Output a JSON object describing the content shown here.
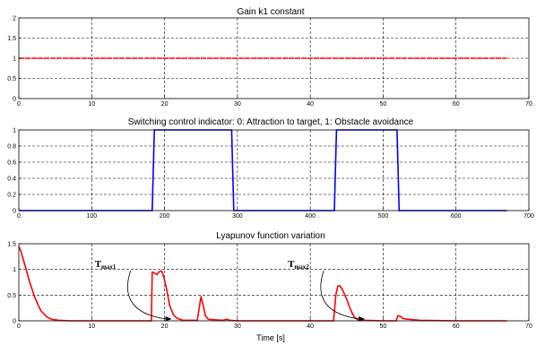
{
  "chart_data": [
    {
      "type": "line",
      "title": "Gain k1 constant",
      "xlim": [
        0,
        70
      ],
      "ylim": [
        0,
        2
      ],
      "xticks": [
        0,
        10,
        20,
        30,
        40,
        50,
        60,
        70
      ],
      "yticks": [
        0,
        0.5,
        1,
        1.5,
        2
      ],
      "grid": true,
      "series": [
        {
          "color": "#ff0000",
          "style": "dashed",
          "x": [
            0,
            67
          ],
          "y": [
            1,
            1
          ]
        }
      ]
    },
    {
      "type": "line",
      "title": "Switching control indicator: 0: Attraction to target, 1: Obstacle avoidance",
      "xlim": [
        0,
        700
      ],
      "ylim": [
        0,
        1
      ],
      "xticks": [
        0,
        100,
        200,
        300,
        400,
        500,
        600,
        700
      ],
      "yticks": [
        0,
        0.2,
        0.4,
        0.6,
        0.8,
        1
      ],
      "grid": true,
      "series": [
        {
          "color": "#0000ff",
          "x": [
            0,
            183,
            186,
            292,
            295,
            433,
            436,
            519,
            522,
            670
          ],
          "y": [
            0,
            0,
            1,
            1,
            0,
            0,
            1,
            1,
            0,
            0
          ]
        }
      ]
    },
    {
      "type": "line",
      "title": "Lyapunov function variation",
      "xlabel": "Time [s]",
      "xlim": [
        0,
        70
      ],
      "ylim": [
        0,
        1.5
      ],
      "xticks": [
        0,
        10,
        20,
        30,
        40,
        50,
        60,
        70
      ],
      "yticks": [
        0,
        0.5,
        1,
        1.5
      ],
      "grid": true,
      "series": [
        {
          "color": "#ff0000",
          "x": [
            0,
            0.3,
            0.8,
            1.5,
            2.2,
            3,
            3.8,
            4.5,
            5.5,
            7,
            10,
            15,
            18.2,
            18.3,
            18.6,
            19.0,
            19.2,
            19.6,
            19.9,
            20.3,
            20.7,
            21.2,
            21.7,
            22.5,
            24.5,
            24.7,
            25.0,
            25.3,
            25.6,
            26,
            27,
            28,
            28.5,
            29,
            30,
            35,
            40,
            43.2,
            43.5,
            43.8,
            44.1,
            44.5,
            45,
            45.5,
            46,
            46.5,
            47.5,
            50,
            51.8,
            52,
            52.3,
            52.8,
            55,
            60,
            67
          ],
          "y": [
            1.45,
            1.35,
            1.1,
            0.75,
            0.45,
            0.2,
            0.08,
            0.03,
            0.01,
            0,
            0,
            0,
            0,
            0.95,
            0.93,
            0.9,
            0.95,
            0.97,
            0.85,
            0.6,
            0.3,
            0.12,
            0.05,
            0.01,
            0.01,
            0.2,
            0.47,
            0.3,
            0.1,
            0.03,
            0.02,
            0.01,
            0.03,
            0.01,
            0,
            0,
            0,
            0,
            0.5,
            0.68,
            0.68,
            0.58,
            0.42,
            0.22,
            0.08,
            0.02,
            0.01,
            0,
            0,
            0.1,
            0.09,
            0.04,
            0.01,
            0,
            0
          ]
        }
      ],
      "annotations": [
        {
          "label": "T",
          "subscript": "max1",
          "x": 21,
          "y": 0
        },
        {
          "label": "T",
          "subscript": "max2",
          "x": 47.5,
          "y": 0
        }
      ]
    }
  ]
}
